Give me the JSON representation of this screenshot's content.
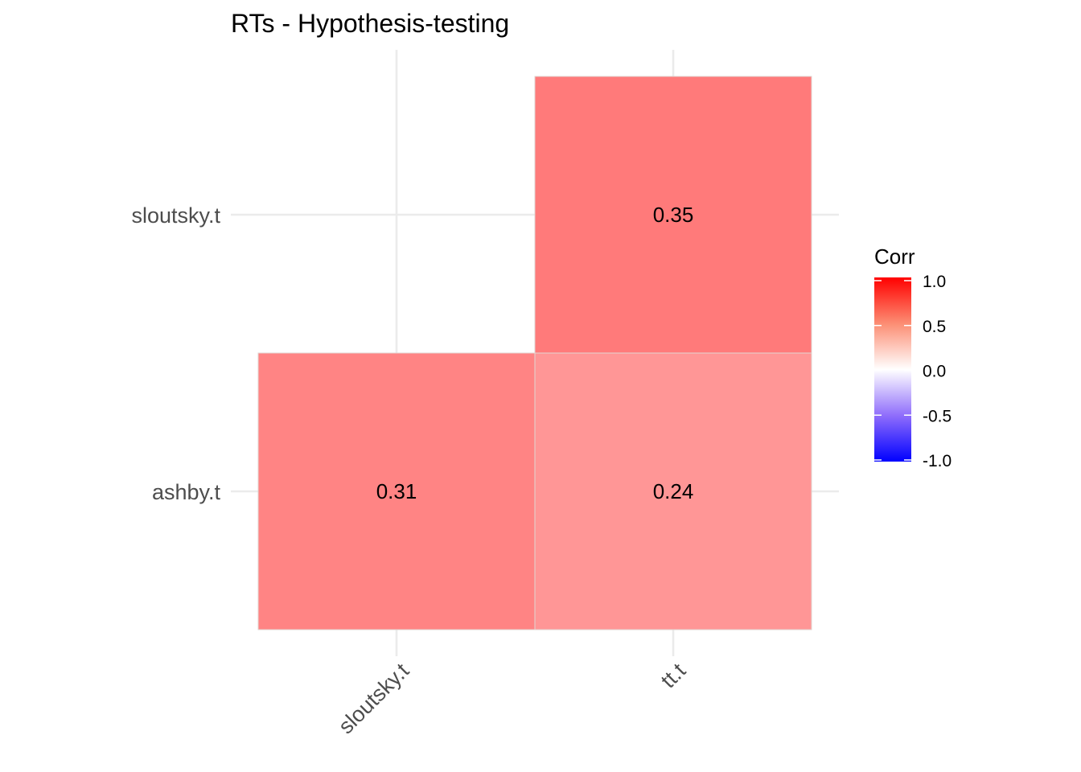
{
  "chart_data": {
    "type": "heatmap",
    "title": "RTs - Hypothesis-testing",
    "x_categories": [
      "sloutsky.t",
      "tt.t"
    ],
    "y_categories": [
      "ashby.t",
      "sloutsky.t"
    ],
    "cells": [
      {
        "x": "sloutsky.t",
        "y": "ashby.t",
        "value": 0.31,
        "label": "0.31"
      },
      {
        "x": "tt.t",
        "y": "ashby.t",
        "value": 0.24,
        "label": "0.24"
      },
      {
        "x": "tt.t",
        "y": "sloutsky.t",
        "value": 0.35,
        "label": "0.35"
      }
    ],
    "legend": {
      "title": "Corr",
      "placement": "right",
      "range": [
        -1.0,
        1.0
      ],
      "breaks": [
        1.0,
        0.5,
        0.0,
        -0.5,
        -1.0
      ],
      "break_labels": [
        "1.0",
        "0.5",
        "0.0",
        "-0.5",
        "-1.0"
      ],
      "colors": {
        "low": "#0000ff",
        "mid": "#ffffff",
        "high": "#ff0000"
      }
    },
    "grid": true
  }
}
